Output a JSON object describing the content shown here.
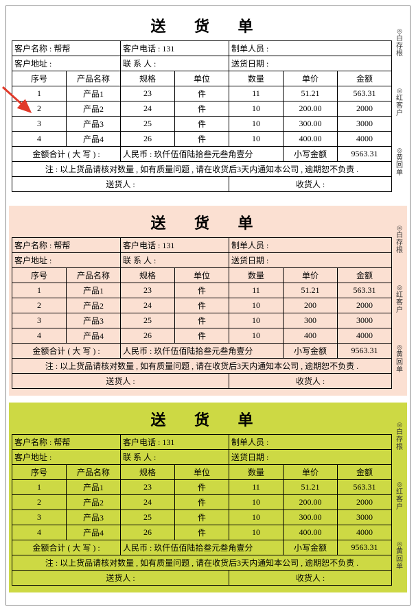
{
  "copies": [
    {
      "bg": "#ffffff",
      "side1": "白存根",
      "side2": "红客户",
      "side3": "黄回单"
    },
    {
      "bg": "#fbe0d2",
      "side1": "白存根",
      "side2": "红客户",
      "side3": "黄回单"
    },
    {
      "bg": "#cdd944",
      "side1": "白存根",
      "side2": "红客户",
      "side3": "黄回单"
    }
  ],
  "priceDecimals": [
    2,
    0,
    2
  ],
  "title": "送 货 单",
  "customerNameLabel": "客户名称 :",
  "customerName": "帮帮",
  "customerPhoneLabel": "客户电话 :",
  "customerPhone": "131",
  "makerLabel": "制单人员 :",
  "maker": "",
  "customerAddrLabel": "客户地址 :",
  "customerAddr": "",
  "contactLabel": "联 系 人 :",
  "contact": "",
  "deliveryDateLabel": "送货日期 :",
  "deliveryDate": "",
  "cols": {
    "seq": "序号",
    "name": "产品名称",
    "spec": "规格",
    "unit": "单位",
    "qty": "数量",
    "price": "单价",
    "amount": "金额"
  },
  "rows": [
    {
      "seq": "1",
      "name": "产品1",
      "spec": "23",
      "unit": "件",
      "qty": "11",
      "price": 51.21,
      "amount": "563.31"
    },
    {
      "seq": "2",
      "name": "产品2",
      "spec": "24",
      "unit": "件",
      "qty": "10",
      "price": 200.0,
      "amount": "2000"
    },
    {
      "seq": "3",
      "name": "产品3",
      "spec": "25",
      "unit": "件",
      "qty": "10",
      "price": 300.0,
      "amount": "3000"
    },
    {
      "seq": "4",
      "name": "产品4",
      "spec": "26",
      "unit": "件",
      "qty": "10",
      "price": 400.0,
      "amount": "4000"
    }
  ],
  "totalCnLabel": "金额合计 ( 大 写 ) :",
  "totalRmbLabel": "人民币 :",
  "totalCn": "玖仟伍佰陆拾叁元叁角壹分",
  "totalLabel": "小写金额",
  "total": "9563.31",
  "note": "注 : 以上货品请核对数量 , 如有质量问题 , 请在收货后3天内通知本公司 , 逾期恕不负责 .",
  "senderLabel": "送货人 :",
  "receiverLabel": "收货人 :",
  "arrowColor": "#e13a2a"
}
